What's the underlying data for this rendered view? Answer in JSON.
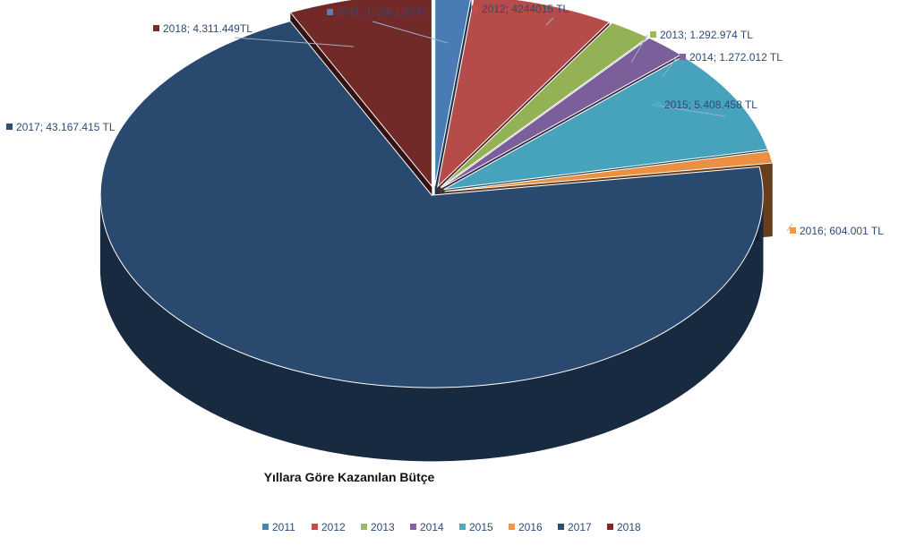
{
  "chart_data": {
    "type": "pie",
    "title": "Yıllara Göre Kazanılan Bütçe",
    "categories": [
      "2011",
      "2012",
      "2013",
      "2014",
      "2015",
      "2016",
      "2017",
      "2018"
    ],
    "values": [
      1079107,
      4244015,
      1292974,
      1272012,
      5408458,
      604001,
      43167415,
      4311449
    ],
    "data_labels": [
      "2011; 1.079.107 TL",
      "2012; 4244015 TL",
      "2013; 1.292.974 TL",
      "2014; 1.272.012 TL",
      "2015; 5.408.458 TL",
      "2016; 604.001 TL",
      "2017; 43.167.415 TL",
      "2018; 4.311.449TL"
    ],
    "colors": [
      "#4f81bd",
      "#c0504d",
      "#9bbb59",
      "#8064a2",
      "#4bacc6",
      "#f79646",
      "#2c4d75",
      "#772c2a"
    ],
    "legend_position": "bottom",
    "exploded": true,
    "three_d": true
  }
}
